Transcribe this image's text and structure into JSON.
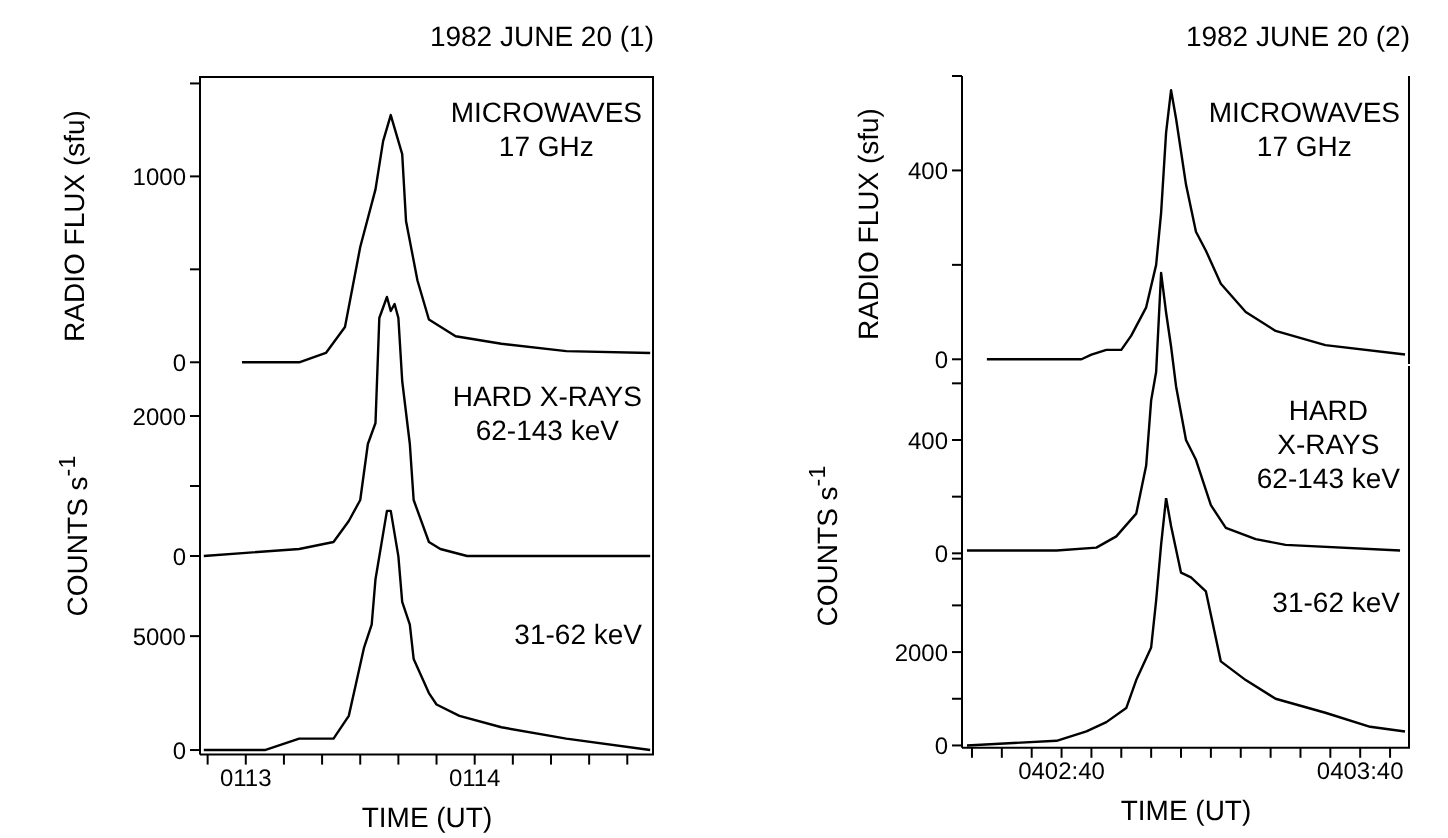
{
  "chart_data": [
    {
      "type": "line",
      "title": "1982 JUNE 20 (1)",
      "ylabel": "RADIO FLUX (sfu)",
      "annotations": [
        "MICROWAVES",
        "17 GHz"
      ],
      "xlim": [
        "1982-06-20T01:12:48",
        "1982-06-20T01:14:47"
      ],
      "ylim": [
        -20,
        1540
      ],
      "yticks": [
        0,
        {
          "value": 500,
          "label": null
        },
        1000,
        {
          "value": 1500,
          "label": null
        }
      ],
      "tick_labels": "y",
      "series": [
        {
          "color": "#000000",
          "x": [
            "1982-06-20T01:12:59",
            "1982-06-20T01:13:14",
            "1982-06-20T01:13:21",
            "1982-06-20T01:13:26",
            "1982-06-20T01:13:30",
            "1982-06-20T01:13:34",
            "1982-06-20T01:13:36",
            "1982-06-20T01:13:38",
            "1982-06-20T01:13:41",
            "1982-06-20T01:13:42",
            "1982-06-20T01:13:45",
            "1982-06-20T01:13:48",
            "1982-06-20T01:13:55",
            "1982-06-20T01:14:07",
            "1982-06-20T01:14:24",
            "1982-06-20T01:14:46"
          ],
          "values": [
            0,
            0,
            50,
            190,
            620,
            930,
            1190,
            1330,
            1120,
            760,
            440,
            230,
            140,
            100,
            60,
            50
          ]
        }
      ]
    },
    {
      "type": "line",
      "ylabel": "COUNTS s$^{-1}$",
      "annotations": [
        "HARD X-RAYS",
        "62-143 keV"
      ],
      "xlim": [
        "1982-06-20T01:12:48",
        "1982-06-20T01:14:47"
      ],
      "ylim": [
        -100,
        3800
      ],
      "yticks": [
        0,
        {
          "value": 1000,
          "label": null
        },
        2000
      ],
      "tick_labels": "y",
      "series": [
        {
          "color": "#000000",
          "x": [
            "1982-06-20T01:12:49",
            "1982-06-20T01:13:14",
            "1982-06-20T01:13:23",
            "1982-06-20T01:13:27",
            "1982-06-20T01:13:30",
            "1982-06-20T01:13:32",
            "1982-06-20T01:13:34",
            "1982-06-20T01:13:35",
            "1982-06-20T01:13:37",
            "1982-06-20T01:13:38",
            "1982-06-20T01:13:39",
            "1982-06-20T01:13:40",
            "1982-06-20T01:13:41",
            "1982-06-20T01:13:43",
            "1982-06-20T01:13:44",
            "1982-06-20T01:13:48",
            "1982-06-20T01:13:51",
            "1982-06-20T01:13:58",
            "1982-06-20T01:14:46"
          ],
          "values": [
            0,
            100,
            200,
            500,
            800,
            1600,
            1900,
            3400,
            3700,
            3500,
            3600,
            3400,
            2500,
            1600,
            800,
            200,
            100,
            0,
            0
          ]
        }
      ]
    },
    {
      "type": "line",
      "xlabel": "TIME (UT)",
      "annotations": [
        "31-62 keV"
      ],
      "xlim": [
        "1982-06-20T01:12:48",
        "1982-06-20T01:14:47"
      ],
      "xticks": [
        {
          "value": "1982-06-20T01:12:50",
          "label": null
        },
        {
          "value": "1982-06-20T01:13:00",
          "label": "0113"
        },
        {
          "value": "1982-06-20T01:13:10",
          "label": null
        },
        {
          "value": "1982-06-20T01:13:20",
          "label": null
        },
        {
          "value": "1982-06-20T01:13:30",
          "label": null
        },
        {
          "value": "1982-06-20T01:13:40",
          "label": null
        },
        {
          "value": "1982-06-20T01:13:50",
          "label": null
        },
        {
          "value": "1982-06-20T01:14:00",
          "label": "0114"
        },
        {
          "value": "1982-06-20T01:14:10",
          "label": null
        },
        {
          "value": "1982-06-20T01:14:20",
          "label": null
        },
        {
          "value": "1982-06-20T01:14:30",
          "label": null
        },
        {
          "value": "1982-06-20T01:14:40",
          "label": null
        }
      ],
      "ylim": [
        -200,
        10800
      ],
      "yticks": [
        0,
        5000
      ],
      "series": [
        {
          "color": "#000000",
          "x": [
            "1982-06-20T01:12:49",
            "1982-06-20T01:13:05",
            "1982-06-20T01:13:14",
            "1982-06-20T01:13:23",
            "1982-06-20T01:13:27",
            "1982-06-20T01:13:29",
            "1982-06-20T01:13:31",
            "1982-06-20T01:13:33",
            "1982-06-20T01:13:34",
            "1982-06-20T01:13:36",
            "1982-06-20T01:13:37",
            "1982-06-20T01:13:38",
            "1982-06-20T01:13:40",
            "1982-06-20T01:13:41",
            "1982-06-20T01:13:43",
            "1982-06-20T01:13:44",
            "1982-06-20T01:13:48",
            "1982-06-20T01:13:50",
            "1982-06-20T01:13:56",
            "1982-06-20T01:14:07",
            "1982-06-20T01:14:24",
            "1982-06-20T01:14:46"
          ],
          "values": [
            0,
            0,
            500,
            500,
            1500,
            3000,
            4500,
            5500,
            7500,
            9500,
            10500,
            10500,
            8500,
            6500,
            5500,
            4000,
            2500,
            2000,
            1500,
            1000,
            500,
            0
          ]
        }
      ]
    },
    {
      "type": "line",
      "title": "1982 JUNE 20 (2)",
      "ylabel": "RADIO FLUX (sfu)",
      "annotations": [
        "MICROWAVES",
        "17 GHz"
      ],
      "xlim": [
        "1982-06-20T04:02:20",
        "1982-06-20T04:03:50"
      ],
      "ylim": [
        -10,
        600
      ],
      "yticks": [
        0,
        {
          "value": 200,
          "label": null
        },
        400,
        {
          "value": 600,
          "label": null
        }
      ],
      "tick_labels": "y",
      "series": [
        {
          "color": "#000000",
          "x": [
            "1982-06-20T04:02:25",
            "1982-06-20T04:02:44",
            "1982-06-20T04:02:46",
            "1982-06-20T04:02:49",
            "1982-06-20T04:02:52",
            "1982-06-20T04:02:54",
            "1982-06-20T04:02:57",
            "1982-06-20T04:02:59",
            "1982-06-20T04:03:00",
            "1982-06-20T04:03:01",
            "1982-06-20T04:03:02",
            "1982-06-20T04:03:03",
            "1982-06-20T04:03:05",
            "1982-06-20T04:03:07",
            "1982-06-20T04:03:09",
            "1982-06-20T04:03:12",
            "1982-06-20T04:03:17",
            "1982-06-20T04:03:23",
            "1982-06-20T04:03:33",
            "1982-06-20T04:03:49"
          ],
          "values": [
            0,
            0,
            10,
            20,
            20,
            50,
            110,
            200,
            310,
            480,
            570,
            510,
            370,
            270,
            230,
            160,
            100,
            60,
            30,
            10
          ]
        }
      ]
    },
    {
      "type": "line",
      "ylabel": "COUNTS s$^{-1}$",
      "annotations": [
        "HARD",
        "X-RAYS",
        "62-143 keV"
      ],
      "xlim": [
        "1982-06-20T04:02:20",
        "1982-06-20T04:03:50"
      ],
      "ylim": [
        -20,
        1000
      ],
      "yticks": [
        0,
        {
          "value": 200,
          "label": null
        },
        400,
        {
          "value": 600,
          "label": null
        }
      ],
      "tick_labels": "y",
      "series": [
        {
          "color": "#000000",
          "x": [
            "1982-06-20T04:02:21",
            "1982-06-20T04:02:39",
            "1982-06-20T04:02:47",
            "1982-06-20T04:02:51",
            "1982-06-20T04:02:55",
            "1982-06-20T04:02:57",
            "1982-06-20T04:02:58",
            "1982-06-20T04:02:59",
            "1982-06-20T04:03:00",
            "1982-06-20T04:03:01",
            "1982-06-20T04:03:02",
            "1982-06-20T04:03:03",
            "1982-06-20T04:03:05",
            "1982-06-20T04:03:07",
            "1982-06-20T04:03:10",
            "1982-06-20T04:03:13",
            "1982-06-20T04:03:19",
            "1982-06-20T04:03:25",
            "1982-06-20T04:03:48"
          ],
          "values": [
            10,
            10,
            20,
            60,
            140,
            310,
            540,
            640,
            990,
            850,
            730,
            590,
            400,
            330,
            170,
            90,
            50,
            30,
            10
          ]
        }
      ]
    },
    {
      "type": "line",
      "xlabel": "TIME (UT)",
      "annotations": [
        "31-62 keV"
      ],
      "xlim": [
        "1982-06-20T04:02:20",
        "1982-06-20T04:03:50"
      ],
      "xticks": [
        {
          "value": "1982-06-20T04:02:22",
          "label": null
        },
        {
          "value": "1982-06-20T04:02:28",
          "label": null
        },
        {
          "value": "1982-06-20T04:02:34",
          "label": null
        },
        {
          "value": "1982-06-20T04:02:40",
          "label": "0402:40"
        },
        {
          "value": "1982-06-20T04:02:46",
          "label": null
        },
        {
          "value": "1982-06-20T04:02:52",
          "label": null
        },
        {
          "value": "1982-06-20T04:02:58",
          "label": null
        },
        {
          "value": "1982-06-20T04:03:04",
          "label": null
        },
        {
          "value": "1982-06-20T04:03:10",
          "label": null
        },
        {
          "value": "1982-06-20T04:03:16",
          "label": null
        },
        {
          "value": "1982-06-20T04:03:22",
          "label": null
        },
        {
          "value": "1982-06-20T04:03:28",
          "label": null
        },
        {
          "value": "1982-06-20T04:03:34",
          "label": null
        },
        {
          "value": "1982-06-20T04:03:40",
          "label": "0403:40"
        },
        {
          "value": "1982-06-20T04:03:46",
          "label": null
        }
      ],
      "ylim": [
        -50,
        5300
      ],
      "yticks": [
        0,
        {
          "value": 1000,
          "label": null
        },
        2000,
        {
          "value": 3000,
          "label": null
        },
        {
          "value": 4000,
          "label": null
        }
      ],
      "series": [
        {
          "color": "#000000",
          "x": [
            "1982-06-20T04:02:21",
            "1982-06-20T04:02:39",
            "1982-06-20T04:02:45",
            "1982-06-20T04:02:49",
            "1982-06-20T04:02:53",
            "1982-06-20T04:02:55",
            "1982-06-20T04:02:58",
            "1982-06-20T04:02:59",
            "1982-06-20T04:03:00",
            "1982-06-20T04:03:01",
            "1982-06-20T04:03:02",
            "1982-06-20T04:03:04",
            "1982-06-20T04:03:06",
            "1982-06-20T04:03:09",
            "1982-06-20T04:03:10",
            "1982-06-20T04:03:12",
            "1982-06-20T04:03:17",
            "1982-06-20T04:03:23",
            "1982-06-20T04:03:33",
            "1982-06-20T04:03:42",
            "1982-06-20T04:03:49"
          ],
          "values": [
            0,
            100,
            300,
            500,
            800,
            1400,
            2100,
            3100,
            4300,
            5300,
            4700,
            3700,
            3600,
            3300,
            2800,
            1800,
            1400,
            1000,
            700,
            400,
            300
          ]
        }
      ]
    }
  ]
}
